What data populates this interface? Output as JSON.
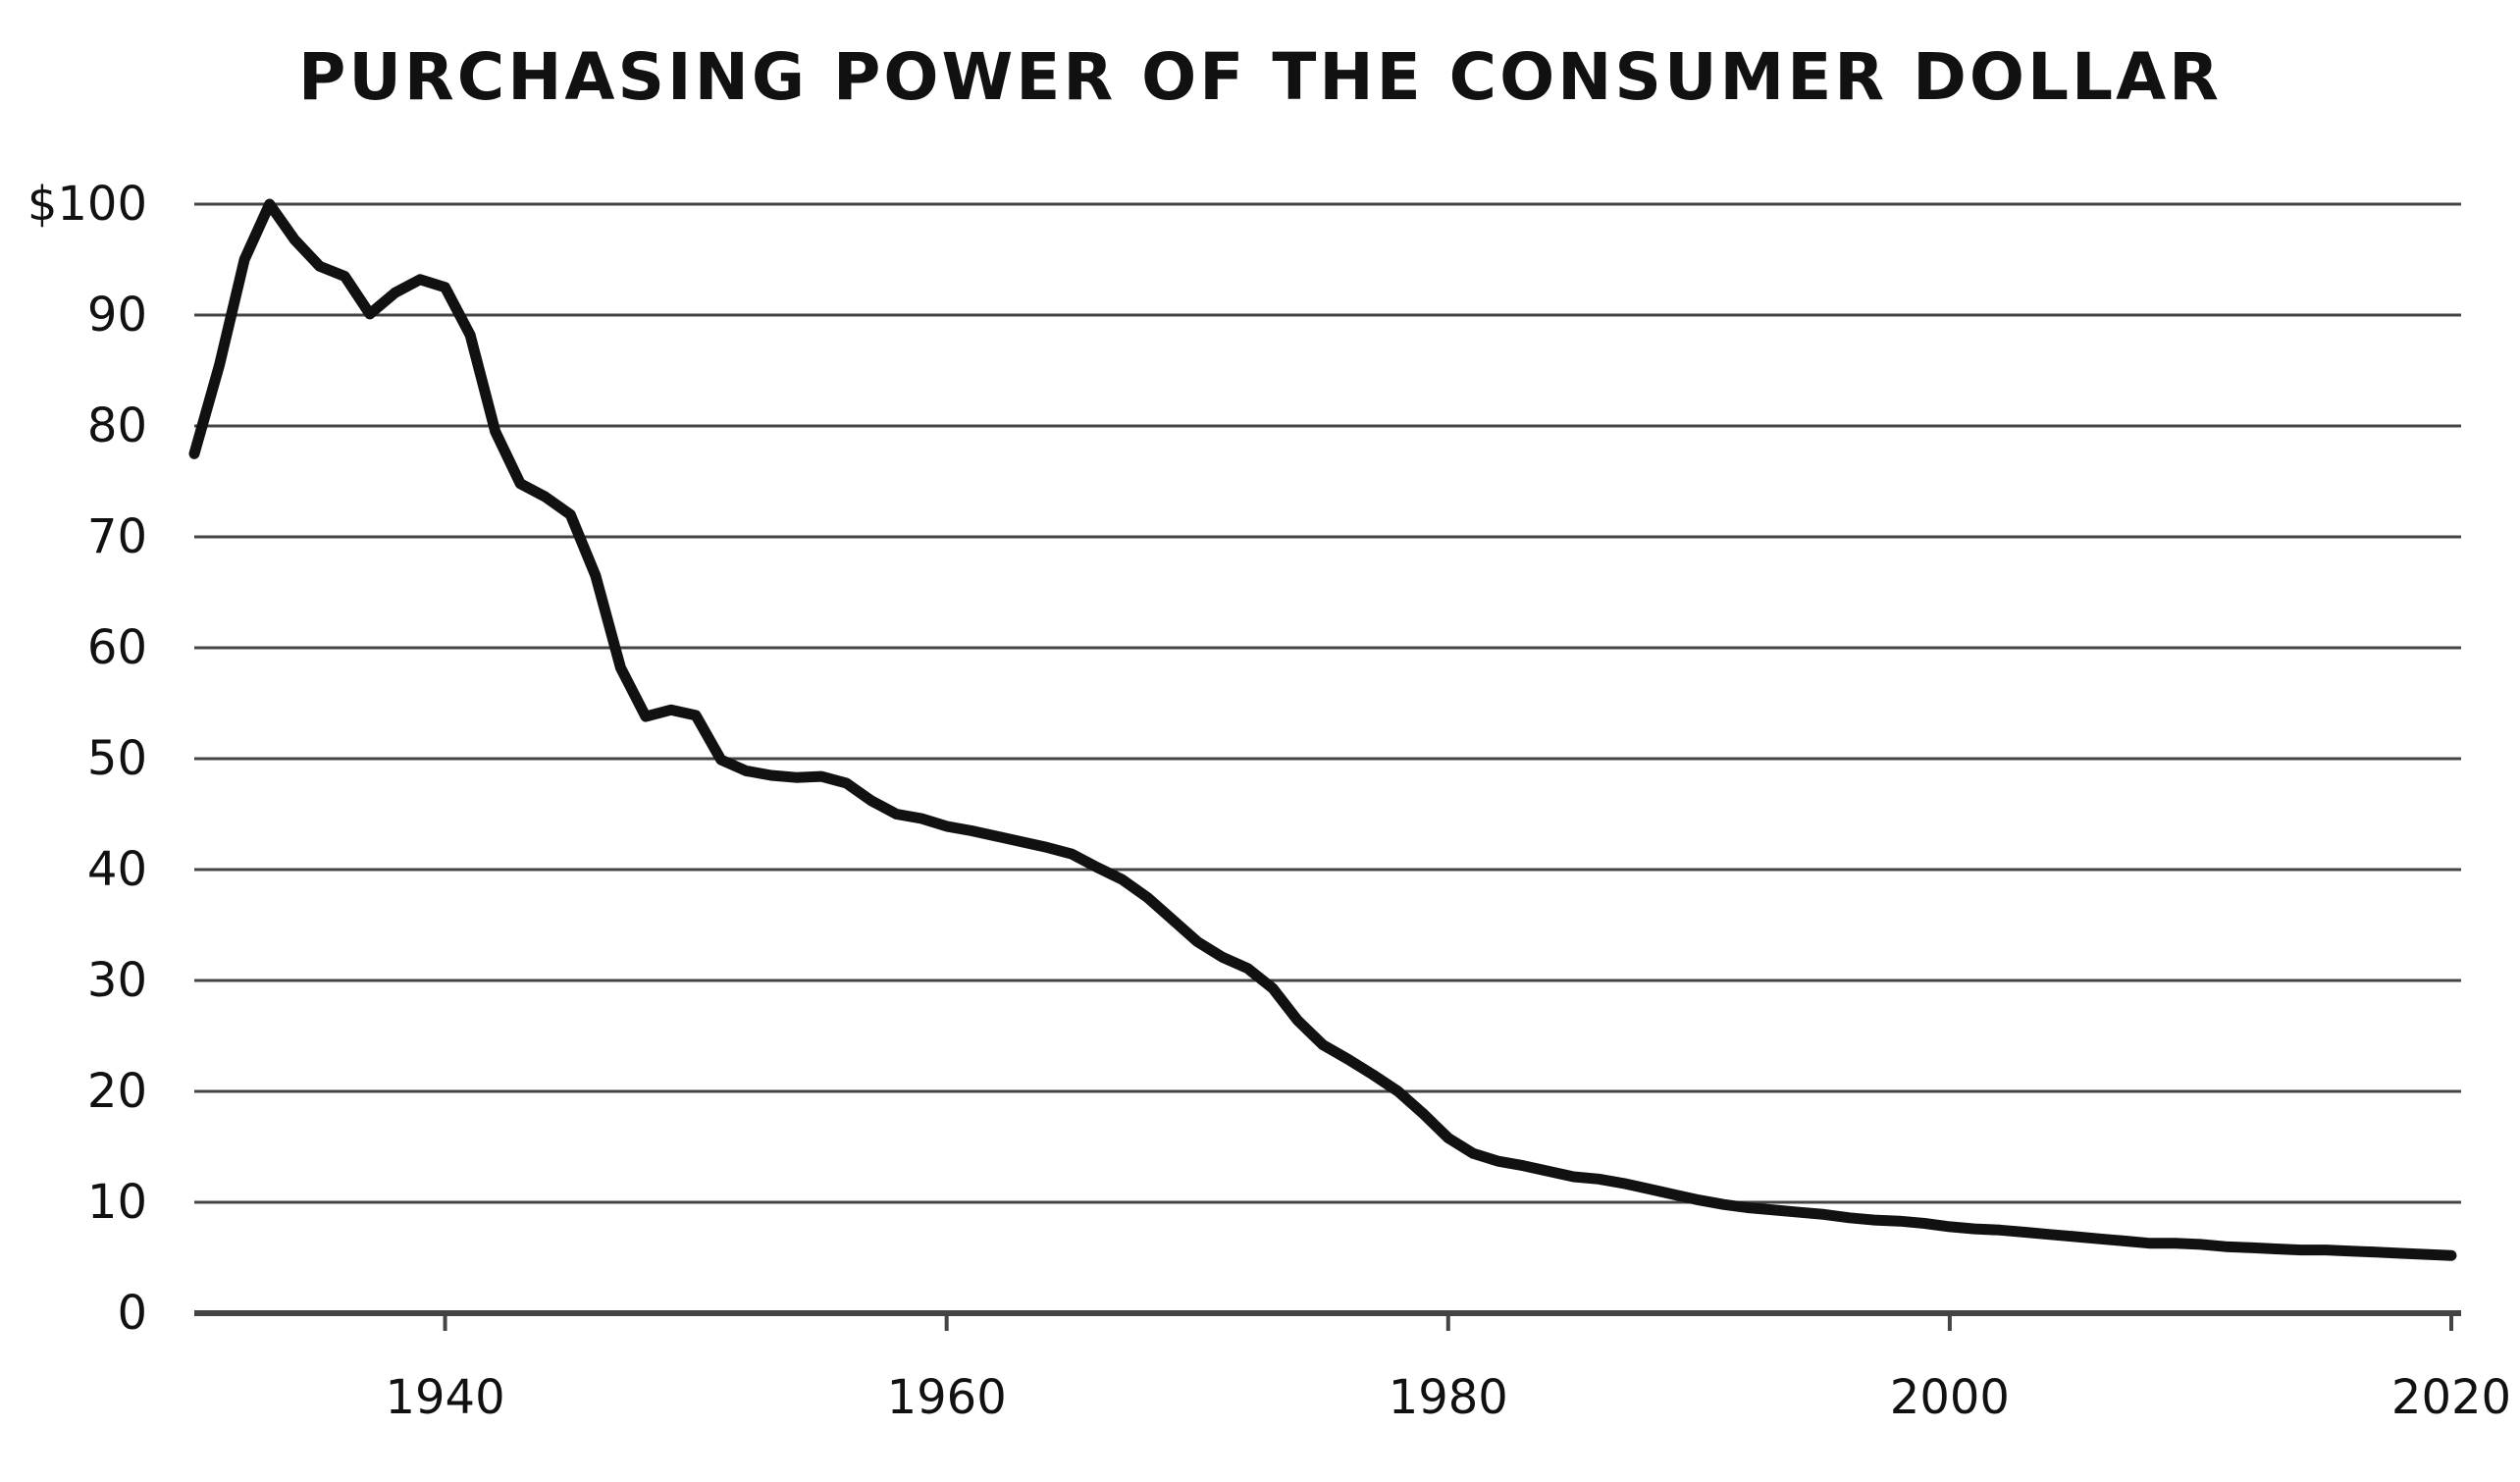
{
  "chart_data": {
    "type": "line",
    "title": "PURCHASING POWER OF THE CONSUMER DOLLAR",
    "xlabel": "",
    "ylabel": "",
    "xlim": [
      1930,
      2020
    ],
    "ylim": [
      0,
      100
    ],
    "grid": true,
    "line_color": "#111111",
    "y_ticks": [
      {
        "value": 0,
        "label": "0"
      },
      {
        "value": 10,
        "label": "10"
      },
      {
        "value": 20,
        "label": "20"
      },
      {
        "value": 30,
        "label": "30"
      },
      {
        "value": 40,
        "label": "40"
      },
      {
        "value": 50,
        "label": "50"
      },
      {
        "value": 60,
        "label": "60"
      },
      {
        "value": 70,
        "label": "70"
      },
      {
        "value": 80,
        "label": "80"
      },
      {
        "value": 90,
        "label": "90"
      },
      {
        "value": 100,
        "label": "$100"
      }
    ],
    "x_ticks": [
      {
        "value": 1940,
        "label": "1940"
      },
      {
        "value": 1960,
        "label": "1960"
      },
      {
        "value": 1980,
        "label": "1980"
      },
      {
        "value": 2000,
        "label": "2000"
      },
      {
        "value": 2020,
        "label": "2020"
      }
    ],
    "series": [
      {
        "x": [
          1930,
          1931,
          1932,
          1933,
          1934,
          1935,
          1936,
          1937,
          1938,
          1939,
          1940,
          1941,
          1942,
          1943,
          1944,
          1945,
          1946,
          1947,
          1948,
          1949,
          1950,
          1951,
          1952,
          1953,
          1954,
          1955,
          1956,
          1957,
          1958,
          1959,
          1960,
          1961,
          1962,
          1963,
          1964,
          1965,
          1966,
          1967,
          1968,
          1969,
          1970,
          1971,
          1972,
          1973,
          1974,
          1975,
          1976,
          1977,
          1978,
          1979,
          1980,
          1981,
          1982,
          1983,
          1984,
          1985,
          1986,
          1987,
          1988,
          1989,
          1990,
          1991,
          1992,
          1993,
          1994,
          1995,
          1996,
          1997,
          1998,
          1999,
          2000,
          2001,
          2002,
          2003,
          2004,
          2005,
          2006,
          2007,
          2008,
          2009,
          2010,
          2011,
          2012,
          2013,
          2014,
          2015,
          2016,
          2017,
          2018,
          2019,
          2020
        ],
        "y": [
          77.5,
          85.5,
          95,
          100,
          96.8,
          94.4,
          93.5,
          90.1,
          92,
          93.2,
          92.5,
          88.2,
          79.5,
          74.8,
          73.6,
          72,
          66.5,
          58.2,
          53.8,
          54.4,
          53.9,
          49.9,
          48.9,
          48.5,
          48.3,
          48.4,
          47.8,
          46.2,
          45,
          44.6,
          43.9,
          43.5,
          43,
          42.5,
          42,
          41.4,
          40.2,
          39.1,
          37.5,
          35.5,
          33.5,
          32.1,
          31.1,
          29.3,
          26.4,
          24.2,
          22.9,
          21.5,
          20,
          18,
          15.8,
          14.4,
          13.7,
          13.3,
          12.8,
          12.3,
          12.1,
          11.7,
          11.2,
          10.7,
          10.2,
          9.8,
          9.5,
          9.3,
          9.1,
          8.9,
          8.6,
          8.4,
          8.3,
          8.1,
          7.8,
          7.6,
          7.5,
          7.3,
          7.1,
          6.9,
          6.7,
          6.5,
          6.3,
          6.3,
          6.2,
          6,
          5.9,
          5.8,
          5.7,
          5.7,
          5.6,
          5.5,
          5.4,
          5.3,
          5.2
        ]
      }
    ]
  }
}
